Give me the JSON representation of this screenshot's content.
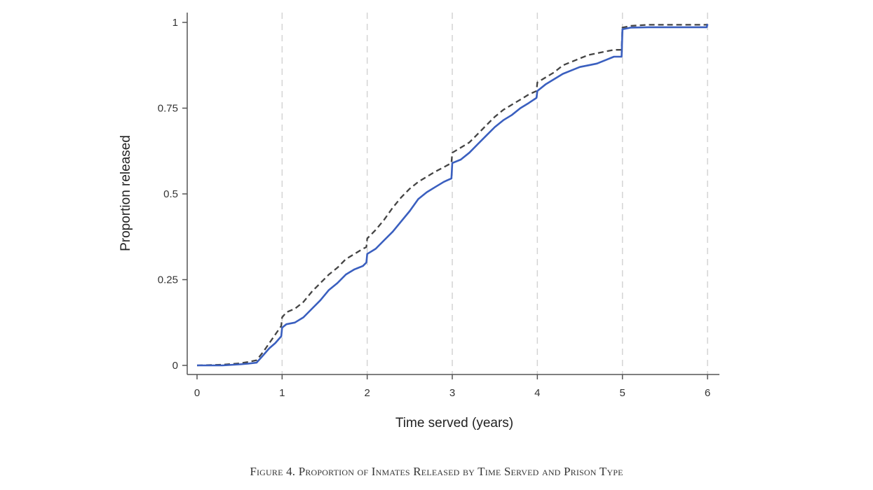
{
  "figure": {
    "caption": "Figure 4. Proportion of Inmates Released by Time Served and Prison Type"
  },
  "chart_data": {
    "type": "line",
    "title": "",
    "xlabel": "Time served (years)",
    "ylabel": "Proportion released",
    "xlim": [
      0,
      6
    ],
    "ylim": [
      0,
      1
    ],
    "xticks": [
      0,
      1,
      2,
      3,
      4,
      5,
      6
    ],
    "xtick_labels": [
      "0",
      "1",
      "2",
      "3",
      "4",
      "5",
      "6"
    ],
    "yticks": [
      0,
      0.25,
      0.5,
      0.75,
      1
    ],
    "ytick_labels": [
      "0",
      "0.25",
      "0.5",
      "0.75",
      "1"
    ],
    "grid": "vertical dashed at x ticks",
    "legend": "none",
    "colors": {
      "solid_series": "#3a5fbf",
      "dashed_series": "#444444",
      "grid": "#d4d4d4",
      "axis": "#555555"
    },
    "series": [
      {
        "style": "solid",
        "x": [
          0,
          0.3,
          0.5,
          0.6,
          0.7,
          0.78,
          0.85,
          0.92,
          0.99,
          1.0,
          1.05,
          1.15,
          1.25,
          1.35,
          1.45,
          1.55,
          1.65,
          1.75,
          1.85,
          1.95,
          1.99,
          2.0,
          2.1,
          2.2,
          2.3,
          2.4,
          2.5,
          2.6,
          2.7,
          2.8,
          2.9,
          2.99,
          3.0,
          3.1,
          3.2,
          3.3,
          3.4,
          3.5,
          3.6,
          3.7,
          3.8,
          3.9,
          3.99,
          4.0,
          4.1,
          4.2,
          4.3,
          4.4,
          4.5,
          4.6,
          4.7,
          4.8,
          4.9,
          4.99,
          5.0,
          5.1,
          5.3,
          5.6,
          5.8,
          5.99,
          6.0
        ],
        "y": [
          0,
          0,
          0.003,
          0.005,
          0.008,
          0.03,
          0.05,
          0.065,
          0.085,
          0.11,
          0.12,
          0.125,
          0.14,
          0.165,
          0.19,
          0.22,
          0.24,
          0.265,
          0.28,
          0.29,
          0.3,
          0.325,
          0.34,
          0.365,
          0.39,
          0.42,
          0.45,
          0.485,
          0.505,
          0.52,
          0.535,
          0.545,
          0.59,
          0.6,
          0.62,
          0.645,
          0.67,
          0.695,
          0.715,
          0.73,
          0.75,
          0.765,
          0.78,
          0.8,
          0.82,
          0.835,
          0.85,
          0.86,
          0.87,
          0.875,
          0.88,
          0.89,
          0.9,
          0.9,
          0.98,
          0.985,
          0.986,
          0.986,
          0.986,
          0.986,
          0.995
        ]
      },
      {
        "style": "dashed",
        "x": [
          0,
          0.3,
          0.5,
          0.6,
          0.7,
          0.78,
          0.85,
          0.92,
          0.99,
          1.0,
          1.05,
          1.15,
          1.25,
          1.35,
          1.45,
          1.55,
          1.65,
          1.75,
          1.85,
          1.95,
          1.99,
          2.0,
          2.1,
          2.2,
          2.3,
          2.4,
          2.5,
          2.6,
          2.7,
          2.8,
          2.9,
          2.99,
          3.0,
          3.1,
          3.2,
          3.3,
          3.4,
          3.5,
          3.6,
          3.7,
          3.8,
          3.9,
          3.99,
          4.0,
          4.1,
          4.2,
          4.3,
          4.4,
          4.5,
          4.6,
          4.7,
          4.8,
          4.9,
          4.99,
          5.0,
          5.1,
          5.3,
          5.6,
          5.8,
          5.99,
          6.0
        ],
        "y": [
          0,
          0.002,
          0.006,
          0.01,
          0.015,
          0.04,
          0.065,
          0.09,
          0.115,
          0.14,
          0.155,
          0.165,
          0.185,
          0.215,
          0.24,
          0.265,
          0.285,
          0.31,
          0.325,
          0.34,
          0.345,
          0.37,
          0.395,
          0.425,
          0.46,
          0.49,
          0.515,
          0.535,
          0.55,
          0.565,
          0.578,
          0.59,
          0.62,
          0.635,
          0.65,
          0.675,
          0.7,
          0.725,
          0.745,
          0.76,
          0.775,
          0.79,
          0.8,
          0.825,
          0.84,
          0.855,
          0.875,
          0.885,
          0.895,
          0.905,
          0.91,
          0.915,
          0.92,
          0.92,
          0.985,
          0.99,
          0.993,
          0.993,
          0.993,
          0.993,
          0.995
        ]
      }
    ]
  }
}
